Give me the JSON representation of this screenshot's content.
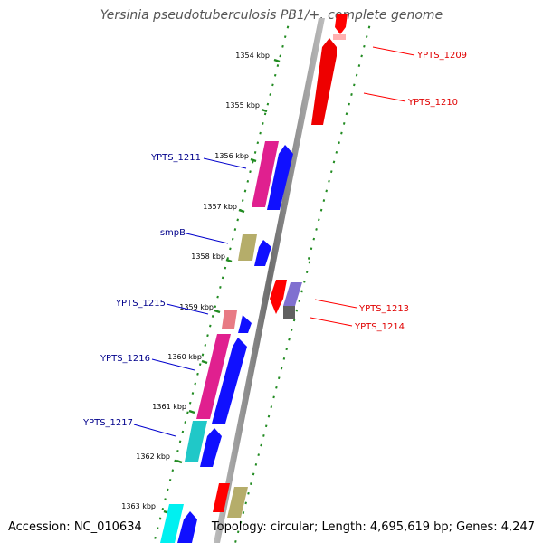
{
  "title": "Yersinia pseudotuberculosis PB1/+, complete genome",
  "accession_text": "Accession: NC_010634",
  "topology_text": "Topology: circular; Length: 4,695,619 bp; Genes: 4,247",
  "colors": {
    "backbone": "#888888",
    "dots": "#228B22",
    "reverse_label": "#00008B",
    "forward_label": "#E00000"
  },
  "kbp_labels": [
    "1354 kbp",
    "1355 kbp",
    "1356 kbp",
    "1357 kbp",
    "1358 kbp",
    "1359 kbp",
    "1360 kbp",
    "1361 kbp",
    "1362 kbp",
    "1363 kbp"
  ],
  "gene_labels": [
    {
      "text": "YPTS_1209",
      "strand": "forward"
    },
    {
      "text": "YPTS_1210",
      "strand": "forward"
    },
    {
      "text": "YPTS_1211",
      "strand": "reverse"
    },
    {
      "text": "smpB",
      "strand": "reverse"
    },
    {
      "text": "YPTS_1213",
      "strand": "forward"
    },
    {
      "text": "YPTS_1214",
      "strand": "forward"
    },
    {
      "text": "YPTS_1215",
      "strand": "reverse"
    },
    {
      "text": "YPTS_1216",
      "strand": "reverse"
    },
    {
      "text": "YPTS_1217",
      "strand": "reverse"
    }
  ]
}
